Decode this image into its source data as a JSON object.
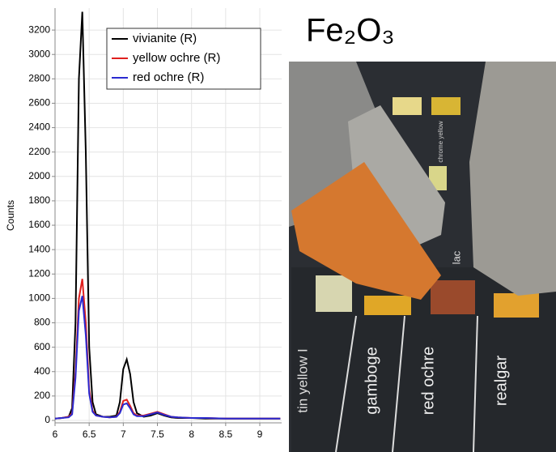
{
  "chart_data": {
    "type": "line",
    "y_label": "Counts",
    "x": [
      6.0,
      6.1,
      6.2,
      6.25,
      6.3,
      6.35,
      6.4,
      6.45,
      6.5,
      6.55,
      6.6,
      6.7,
      6.8,
      6.9,
      6.95,
      7.0,
      7.05,
      7.1,
      7.15,
      7.2,
      7.3,
      7.4,
      7.5,
      7.6,
      7.7,
      7.8,
      8.0,
      8.2,
      8.5,
      8.8,
      9.0,
      9.3
    ],
    "series": [
      {
        "name": "vivianite (R)",
        "color": "#000000",
        "values": [
          15,
          20,
          30,
          100,
          800,
          2800,
          3350,
          2200,
          600,
          150,
          50,
          30,
          30,
          40,
          150,
          420,
          500,
          380,
          150,
          60,
          30,
          40,
          60,
          40,
          25,
          20,
          20,
          15,
          15,
          15,
          15,
          15
        ]
      },
      {
        "name": "yellow ochre (R)",
        "color": "#e0201e",
        "values": [
          15,
          20,
          30,
          60,
          400,
          1000,
          1160,
          800,
          250,
          80,
          40,
          30,
          25,
          30,
          70,
          160,
          170,
          120,
          60,
          40,
          40,
          55,
          70,
          50,
          30,
          25,
          20,
          20,
          15,
          15,
          15,
          15
        ]
      },
      {
        "name": "red ochre (R)",
        "color": "#2a2ad0",
        "values": [
          15,
          20,
          25,
          50,
          350,
          900,
          1020,
          700,
          220,
          70,
          40,
          30,
          25,
          30,
          60,
          130,
          140,
          100,
          50,
          35,
          35,
          50,
          65,
          45,
          30,
          25,
          20,
          20,
          15,
          15,
          15,
          15
        ]
      }
    ],
    "xlim": [
      6,
      9.32
    ],
    "xticks": [
      6,
      6.5,
      7,
      7.5,
      8,
      8.5,
      9
    ],
    "ylim": [
      -20,
      3380
    ],
    "yticks": [
      0,
      200,
      400,
      600,
      800,
      1000,
      1200,
      1400,
      1600,
      1800,
      2000,
      2200,
      2400,
      2600,
      2800,
      3000,
      3200
    ],
    "grid": true,
    "legend": "top"
  },
  "photo": {
    "title": "Fe₂O₃",
    "labels": [
      "tin yellow I",
      "gamboge",
      "red ochre",
      "realgar",
      "lac",
      "chrome yellow"
    ]
  }
}
